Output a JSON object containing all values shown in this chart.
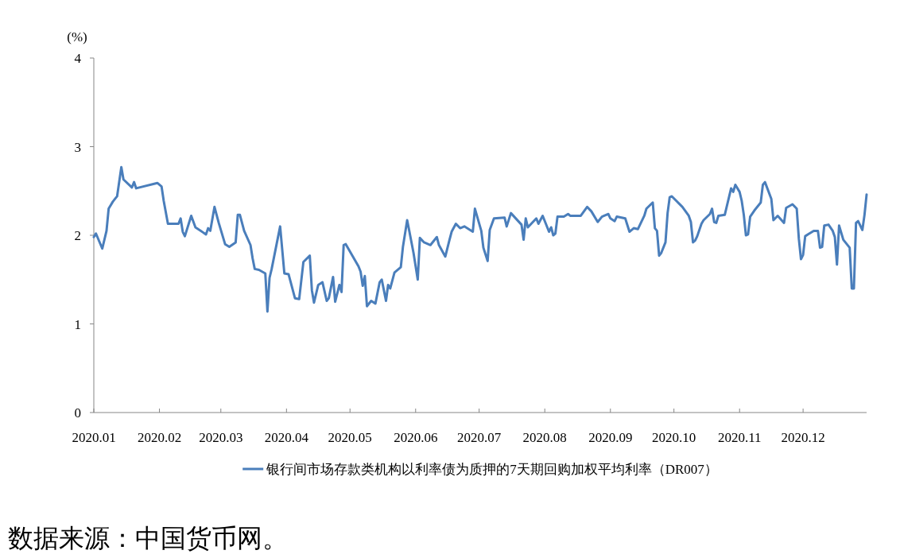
{
  "chart_data": {
    "type": "line",
    "ylabel": "(%)",
    "legend": "bottom",
    "grid": false,
    "marker": "none",
    "line_style": "solid",
    "xlim": [
      "2020-01-01",
      "2020-12-31"
    ],
    "xticks": [
      {
        "value": "2020-01-01",
        "label": "2020.01"
      },
      {
        "value": "2020-02-01",
        "label": "2020.02"
      },
      {
        "value": "2020-03-01",
        "label": "2020.03"
      },
      {
        "value": "2020-04-01",
        "label": "2020.04"
      },
      {
        "value": "2020-05-01",
        "label": "2020.05"
      },
      {
        "value": "2020-06-01",
        "label": "2020.06"
      },
      {
        "value": "2020-07-01",
        "label": "2020.07"
      },
      {
        "value": "2020-08-01",
        "label": "2020.08"
      },
      {
        "value": "2020-09-01",
        "label": "2020.09"
      },
      {
        "value": "2020-10-01",
        "label": "2020.10"
      },
      {
        "value": "2020-11-01",
        "label": "2020.11"
      },
      {
        "value": "2020-12-01",
        "label": "2020.12"
      }
    ],
    "ylim": [
      0,
      4
    ],
    "yticks": [
      0,
      1,
      2,
      3,
      4
    ],
    "annotations": [
      "数据来源：中国货币网。"
    ],
    "x": [
      "2020-01-01",
      "2020-01-02",
      "2020-01-05",
      "2020-01-07",
      "2020-01-08",
      "2020-01-10",
      "2020-01-12",
      "2020-01-14",
      "2020-01-15",
      "2020-01-19",
      "2020-01-20",
      "2020-01-21",
      "2020-01-31",
      "2020-02-02",
      "2020-02-03",
      "2020-02-05",
      "2020-02-10",
      "2020-02-11",
      "2020-02-12",
      "2020-02-13",
      "2020-02-16",
      "2020-02-18",
      "2020-02-23",
      "2020-02-24",
      "2020-02-25",
      "2020-02-27",
      "2020-02-29",
      "2020-03-03",
      "2020-03-05",
      "2020-03-08",
      "2020-03-09",
      "2020-03-10",
      "2020-03-12",
      "2020-03-15",
      "2020-03-16",
      "2020-03-17",
      "2020-03-19",
      "2020-03-22",
      "2020-03-23",
      "2020-03-24",
      "2020-03-25",
      "2020-03-29",
      "2020-03-31",
      "2020-04-02",
      "2020-04-05",
      "2020-04-07",
      "2020-04-09",
      "2020-04-12",
      "2020-04-13",
      "2020-04-14",
      "2020-04-16",
      "2020-04-18",
      "2020-04-20",
      "2020-04-21",
      "2020-04-23",
      "2020-04-24",
      "2020-04-26",
      "2020-04-27",
      "2020-04-28",
      "2020-04-29",
      "2020-05-05",
      "2020-05-06",
      "2020-05-07",
      "2020-05-08",
      "2020-05-09",
      "2020-05-11",
      "2020-05-13",
      "2020-05-15",
      "2020-05-16",
      "2020-05-18",
      "2020-05-19",
      "2020-05-20",
      "2020-05-22",
      "2020-05-25",
      "2020-05-26",
      "2020-05-28",
      "2020-05-29",
      "2020-05-31",
      "2020-06-02",
      "2020-06-03",
      "2020-06-05",
      "2020-06-08",
      "2020-06-11",
      "2020-06-12",
      "2020-06-15",
      "2020-06-17",
      "2020-06-18",
      "2020-06-20",
      "2020-06-22",
      "2020-06-24",
      "2020-06-28",
      "2020-06-29",
      "2020-07-02",
      "2020-07-03",
      "2020-07-05",
      "2020-07-06",
      "2020-07-08",
      "2020-07-13",
      "2020-07-14",
      "2020-07-16",
      "2020-07-21",
      "2020-07-22",
      "2020-07-23",
      "2020-07-24",
      "2020-07-28",
      "2020-07-29",
      "2020-07-31",
      "2020-08-03",
      "2020-08-04",
      "2020-08-05",
      "2020-08-06",
      "2020-08-07",
      "2020-08-10",
      "2020-08-12",
      "2020-08-13",
      "2020-08-18",
      "2020-08-21",
      "2020-08-23",
      "2020-08-26",
      "2020-08-28",
      "2020-08-31",
      "2020-09-01",
      "2020-09-03",
      "2020-09-04",
      "2020-09-08",
      "2020-09-10",
      "2020-09-12",
      "2020-09-14",
      "2020-09-17",
      "2020-09-18",
      "2020-09-21",
      "2020-09-22",
      "2020-09-23",
      "2020-09-24",
      "2020-09-25",
      "2020-09-27",
      "2020-09-28",
      "2020-09-29",
      "2020-09-30",
      "2020-10-05",
      "2020-10-08",
      "2020-10-09",
      "2020-10-10",
      "2020-10-11",
      "2020-10-12",
      "2020-10-14",
      "2020-10-15",
      "2020-10-18",
      "2020-10-19",
      "2020-10-20",
      "2020-10-21",
      "2020-10-22",
      "2020-10-25",
      "2020-10-27",
      "2020-10-28",
      "2020-10-29",
      "2020-10-30",
      "2020-11-01",
      "2020-11-02",
      "2020-11-03",
      "2020-11-04",
      "2020-11-05",
      "2020-11-06",
      "2020-11-08",
      "2020-11-11",
      "2020-11-12",
      "2020-11-13",
      "2020-11-16",
      "2020-11-17",
      "2020-11-19",
      "2020-11-22",
      "2020-11-23",
      "2020-11-26",
      "2020-11-28",
      "2020-11-29",
      "2020-11-30",
      "2020-12-01",
      "2020-12-02",
      "2020-12-06",
      "2020-12-08",
      "2020-12-09",
      "2020-12-10",
      "2020-12-11",
      "2020-12-13",
      "2020-12-15",
      "2020-12-16",
      "2020-12-17",
      "2020-12-18",
      "2020-12-20",
      "2020-12-23",
      "2020-12-24",
      "2020-12-25",
      "2020-12-26",
      "2020-12-27",
      "2020-12-29",
      "2020-12-30",
      "2020-12-31"
    ],
    "series": [
      {
        "name": "银行间市场存款类机构以利率债为质押的7天期回购加权平均利率（DR007）",
        "color": "#4a7ebb",
        "values": [
          1.98,
          2.02,
          1.85,
          2.05,
          2.3,
          2.38,
          2.44,
          2.77,
          2.63,
          2.54,
          2.6,
          2.53,
          2.59,
          2.55,
          2.39,
          2.13,
          2.13,
          2.19,
          2.04,
          1.99,
          2.22,
          2.09,
          2.01,
          2.08,
          2.05,
          2.32,
          2.14,
          1.9,
          1.87,
          1.92,
          2.23,
          2.23,
          2.05,
          1.89,
          1.74,
          1.62,
          1.61,
          1.57,
          1.14,
          1.52,
          1.62,
          2.1,
          1.57,
          1.56,
          1.29,
          1.28,
          1.7,
          1.77,
          1.38,
          1.24,
          1.44,
          1.47,
          1.26,
          1.29,
          1.53,
          1.25,
          1.44,
          1.36,
          1.89,
          1.9,
          1.65,
          1.59,
          1.43,
          1.54,
          1.2,
          1.26,
          1.23,
          1.47,
          1.5,
          1.26,
          1.44,
          1.4,
          1.58,
          1.64,
          1.87,
          2.17,
          2.05,
          1.8,
          1.5,
          1.97,
          1.92,
          1.89,
          1.98,
          1.89,
          1.76,
          1.95,
          2.04,
          2.13,
          2.08,
          2.1,
          2.04,
          2.3,
          2.05,
          1.86,
          1.71,
          2.06,
          2.19,
          2.2,
          2.1,
          2.25,
          2.12,
          1.95,
          2.19,
          2.09,
          2.19,
          2.13,
          2.22,
          2.04,
          2.09,
          2.0,
          2.02,
          2.21,
          2.21,
          2.24,
          2.22,
          2.22,
          2.32,
          2.27,
          2.15,
          2.21,
          2.24,
          2.19,
          2.16,
          2.21,
          2.19,
          2.04,
          2.08,
          2.07,
          2.22,
          2.3,
          2.37,
          2.08,
          2.05,
          1.77,
          1.8,
          1.92,
          2.25,
          2.43,
          2.44,
          2.32,
          2.22,
          2.15,
          1.92,
          1.94,
          1.99,
          2.13,
          2.17,
          2.24,
          2.3,
          2.15,
          2.14,
          2.22,
          2.23,
          2.43,
          2.53,
          2.49,
          2.57,
          2.49,
          2.39,
          2.23,
          2.0,
          2.01,
          2.21,
          2.28,
          2.37,
          2.57,
          2.6,
          2.41,
          2.17,
          2.22,
          2.14,
          2.31,
          2.35,
          2.3,
          1.96,
          1.73,
          1.78,
          1.99,
          2.05,
          2.05,
          1.86,
          1.87,
          2.11,
          2.12,
          2.05,
          1.98,
          1.67,
          2.11,
          1.95,
          1.86,
          1.4,
          1.4,
          2.14,
          2.16,
          2.06,
          2.23,
          2.46
        ]
      }
    ]
  }
}
